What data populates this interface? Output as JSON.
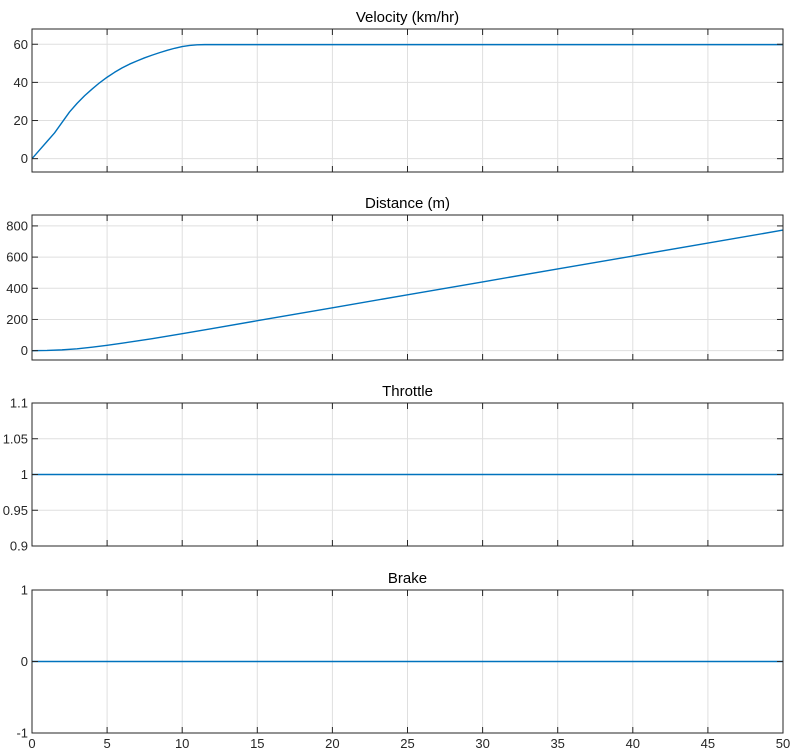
{
  "chart_data": [
    {
      "type": "line",
      "title": "Velocity (km/hr)",
      "xlim": [
        0,
        50
      ],
      "ylim": [
        -7,
        68
      ],
      "xticks": [
        0,
        5,
        10,
        15,
        20,
        25,
        30,
        35,
        40,
        45,
        50
      ],
      "yticks": [
        0,
        20,
        40,
        60
      ],
      "ytick_labels": [
        "0",
        "20",
        "40",
        "60"
      ],
      "show_xtick_labels": false,
      "grid": true,
      "color": "#0072BD",
      "series": [
        {
          "x": [
            0,
            0.5,
            1,
            1.5,
            2,
            2.5,
            3,
            3.5,
            4,
            4.5,
            5,
            5.5,
            6,
            6.5,
            7,
            7.5,
            8,
            8.5,
            9,
            9.5,
            10,
            10.5,
            11,
            11.5,
            12,
            15,
            20,
            25,
            30,
            35,
            40,
            45,
            50
          ],
          "y": [
            0,
            4.5,
            9,
            13.5,
            19,
            24.5,
            29,
            33,
            36.5,
            39.8,
            42.7,
            45.3,
            47.6,
            49.6,
            51.3,
            52.9,
            54.3,
            55.6,
            56.8,
            57.9,
            58.8,
            59.4,
            59.7,
            59.8,
            59.8,
            59.8,
            59.8,
            59.8,
            59.8,
            59.8,
            59.8,
            59.8,
            59.8
          ]
        }
      ]
    },
    {
      "type": "line",
      "title": "Distance (m)",
      "xlim": [
        0,
        50
      ],
      "ylim": [
        -60,
        870
      ],
      "xticks": [
        0,
        5,
        10,
        15,
        20,
        25,
        30,
        35,
        40,
        45,
        50
      ],
      "yticks": [
        0,
        200,
        400,
        600,
        800
      ],
      "ytick_labels": [
        "0",
        "200",
        "400",
        "600",
        "800"
      ],
      "show_xtick_labels": false,
      "grid": true,
      "color": "#0072BD",
      "series": [
        {
          "x": [
            0,
            1,
            2,
            3,
            4,
            5,
            6,
            7,
            8,
            9,
            10,
            12,
            15,
            20,
            25,
            30,
            35,
            40,
            45,
            50
          ],
          "y": [
            0,
            1.3,
            5,
            12,
            22,
            34,
            48,
            62,
            77,
            93,
            109,
            142,
            192,
            275,
            358,
            441,
            524,
            607,
            690,
            773
          ]
        }
      ]
    },
    {
      "type": "line",
      "title": "Throttle",
      "xlim": [
        0,
        50
      ],
      "ylim": [
        0.9,
        1.1
      ],
      "xticks": [
        0,
        5,
        10,
        15,
        20,
        25,
        30,
        35,
        40,
        45,
        50
      ],
      "yticks": [
        0.9,
        0.95,
        1,
        1.05,
        1.1
      ],
      "ytick_labels": [
        "0.9",
        "0.95",
        "1",
        "1.05",
        "1.1"
      ],
      "show_xtick_labels": false,
      "grid": true,
      "color": "#0072BD",
      "series": [
        {
          "x": [
            0,
            50
          ],
          "y": [
            1,
            1
          ]
        }
      ]
    },
    {
      "type": "line",
      "title": "Brake",
      "xlim": [
        0,
        50
      ],
      "ylim": [
        -1,
        1
      ],
      "xticks": [
        0,
        5,
        10,
        15,
        20,
        25,
        30,
        35,
        40,
        45,
        50
      ],
      "xtick_labels": [
        "0",
        "5",
        "10",
        "15",
        "20",
        "25",
        "30",
        "35",
        "40",
        "45",
        "50"
      ],
      "yticks": [
        -1,
        0,
        1
      ],
      "ytick_labels": [
        "-1",
        "0",
        "1"
      ],
      "show_xtick_labels": true,
      "grid": true,
      "color": "#0072BD",
      "series": [
        {
          "x": [
            0,
            50
          ],
          "y": [
            0,
            0
          ]
        }
      ]
    }
  ]
}
